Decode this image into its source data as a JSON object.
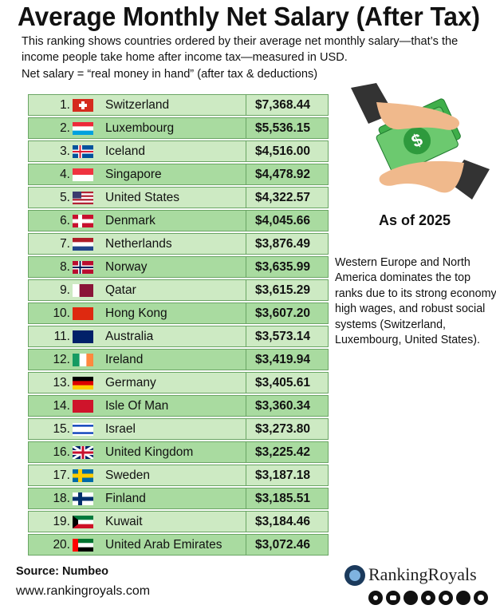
{
  "header": {
    "title": "Average Monthly Net Salary (After Tax)",
    "subtitle": [
      "This ranking shows countries ordered by their average net monthly salary—that’s the",
      "income people take home after income tax—measured in USD.",
      "Net salary = “real money in hand” (after tax & deductions)"
    ]
  },
  "table": {
    "rows": [
      [
        "1.",
        "Switzerland",
        "$7,368.44"
      ],
      [
        "2.",
        "Luxembourg",
        "$5,536.15"
      ],
      [
        "3.",
        "Iceland",
        "$4,516.00"
      ],
      [
        "4.",
        "Singapore",
        "$4,478.92"
      ],
      [
        "5.",
        "United States",
        "$4,322.57"
      ],
      [
        "6.",
        "Denmark",
        "$4,045.66"
      ],
      [
        "7.",
        "Netherlands",
        "$3,876.49"
      ],
      [
        "8.",
        "Norway",
        "$3,635.99"
      ],
      [
        "9.",
        "Qatar",
        "$3,615.29"
      ],
      [
        "10.",
        "Hong Kong",
        "$3,607.20"
      ],
      [
        "11.",
        "Australia",
        "$3,573.14"
      ],
      [
        "12.",
        "Ireland",
        "$3,419.94"
      ],
      [
        "13.",
        "Germany",
        "$3,405.61"
      ],
      [
        "14.",
        "Isle Of Man",
        "$3,360.34"
      ],
      [
        "15.",
        "Israel",
        "$3,273.80"
      ],
      [
        "16.",
        "United Kingdom",
        "$3,225.42"
      ],
      [
        "17.",
        "Sweden",
        "$3,187.18"
      ],
      [
        "18.",
        "Finland",
        "$3,185.51"
      ],
      [
        "19.",
        "Kuwait",
        "$3,184.46"
      ],
      [
        "20.",
        "United Arab Emirates",
        "$3,072.46"
      ]
    ]
  },
  "side": {
    "as_of": "As of 2025",
    "note": [
      "Western Europe and North",
      "America dominates the top",
      "ranks due to its strong economy,",
      "high wages, and robust social",
      "systems (Switzerland,",
      "Luxembourg, United States)."
    ]
  },
  "footer": {
    "source": "Source: Numbeo",
    "website": "www.rankingroyals.com",
    "brand": "RankingRoyals"
  }
}
